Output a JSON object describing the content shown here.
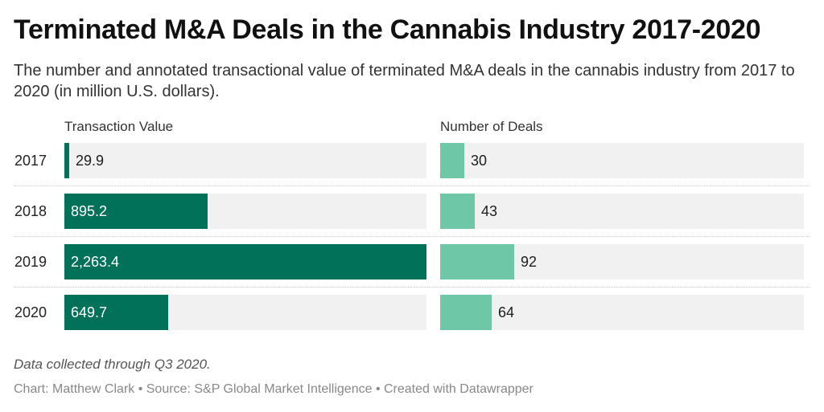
{
  "title": "Terminated M&A Deals in the Cannabis Industry 2017-2020",
  "subtitle": "The number and annotated transactional value of terminated M&A deals in the cannabis industry from 2017 to 2020 (in million U.S. dollars).",
  "note": "Data collected through Q3 2020.",
  "credits": "Chart: Matthew Clark • Source: S&P Global Market Intelligence • Created with Datawrapper",
  "colors": {
    "value_bar": "#027159",
    "deals_bar": "#6ec8a8",
    "track": "#f1f1f1"
  },
  "chart_data": {
    "type": "bar",
    "orientation": "horizontal",
    "categories": [
      "2017",
      "2018",
      "2019",
      "2020"
    ],
    "series": [
      {
        "name": "Transaction Value",
        "values": [
          29.9,
          895.2,
          2263.4,
          649.7
        ],
        "labels": [
          "29.9",
          "895.2",
          "2,263.4",
          "649.7"
        ],
        "xlim": [
          0,
          2263.4
        ]
      },
      {
        "name": "Number of Deals",
        "values": [
          30,
          43,
          92,
          64
        ],
        "labels": [
          "30",
          "43",
          "92",
          "64"
        ],
        "xlim": [
          0,
          450
        ]
      }
    ],
    "grid": false,
    "legend": "column headers"
  }
}
